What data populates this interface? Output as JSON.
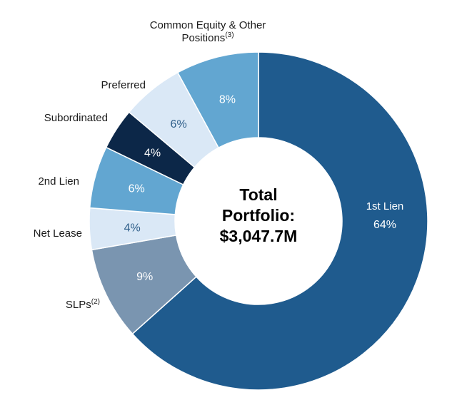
{
  "chart_data": {
    "type": "pie",
    "variant": "donut",
    "center_label": [
      "Total",
      "Portfolio:",
      "$3,047.7M"
    ],
    "slices": [
      {
        "name": "1st Lien",
        "label": "1st Lien",
        "value": 64,
        "value_label": "64%",
        "color": "#1f5b8e",
        "text_color": "#ffffff"
      },
      {
        "name": "SLPs",
        "label": "SLPs",
        "sup": "(2)",
        "value": 9,
        "value_label": "9%",
        "color": "#7a95b0",
        "text_color": "#ffffff"
      },
      {
        "name": "Net Lease",
        "label": "Net Lease",
        "value": 4,
        "value_label": "4%",
        "color": "#dae8f6",
        "text_color": "#2f5f8a"
      },
      {
        "name": "2nd Lien",
        "label": "2nd Lien",
        "value": 6,
        "value_label": "6%",
        "color": "#62a6d1",
        "text_color": "#ffffff"
      },
      {
        "name": "Subordinated",
        "label": "Subordinated",
        "value": 4,
        "value_label": "4%",
        "color": "#0c2748",
        "text_color": "#ffffff"
      },
      {
        "name": "Preferred",
        "label": "Preferred",
        "value": 6,
        "value_label": "6%",
        "color": "#dae8f6",
        "text_color": "#2f5f8a"
      },
      {
        "name": "Common Equity & Other Positions",
        "label_lines": [
          "Common Equity & Other",
          "Positions"
        ],
        "sup": "(3)",
        "value": 8,
        "value_label": "8%",
        "color": "#62a6d1",
        "text_color": "#ffffff"
      }
    ]
  }
}
